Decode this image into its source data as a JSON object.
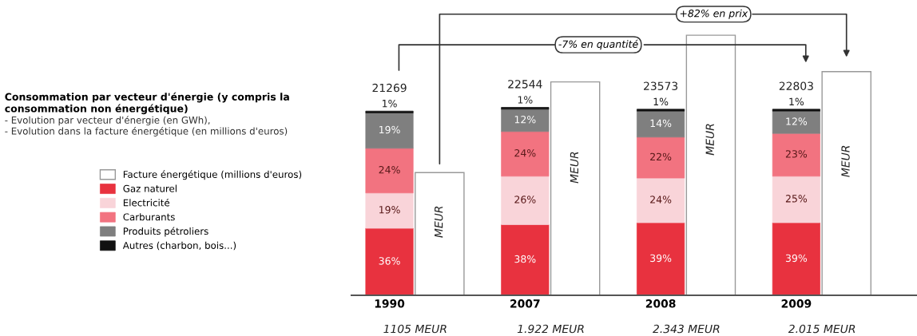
{
  "chart_data": {
    "type": "bar",
    "stacked": true,
    "title": "Consommation par vecteur d'énergie (y compris la\nconsommation non énergétique)",
    "subtitle": "- Evolution par vecteur d'énergie (en GWh),\n- Evolution dans la facture énergétique (en millions d'euros)",
    "categories": [
      "1990",
      "2007",
      "2008",
      "2009"
    ],
    "series": [
      {
        "name": "Gaz naturel",
        "color": "#e8323f",
        "values": [
          36,
          38,
          39,
          39
        ],
        "value_labels": [
          "36%",
          "38%",
          "39%",
          "39%"
        ]
      },
      {
        "name": "Electricité",
        "color": "#f9d4d9",
        "values": [
          19,
          26,
          24,
          25
        ],
        "value_labels": [
          "19%",
          "26%",
          "24%",
          "25%"
        ]
      },
      {
        "name": "Carburants",
        "color": "#f27380",
        "values": [
          24,
          24,
          22,
          23
        ],
        "value_labels": [
          "24%",
          "24%",
          "22%",
          "23%"
        ]
      },
      {
        "name": "Produits pétroliers",
        "color": "#7f7f7f",
        "values": [
          19,
          12,
          14,
          12
        ],
        "value_labels": [
          "19%",
          "12%",
          "14%",
          "12%"
        ]
      },
      {
        "name": "Autres (charbon, bois...)",
        "color": "#111111",
        "values": [
          1,
          1,
          1,
          1
        ],
        "value_labels": [
          "1%",
          "1%",
          "1%",
          "1%"
        ]
      },
      {
        "name": "Facture énergétique (millions d'euros)",
        "color": "#ffffff",
        "axis": "y2",
        "values": [
          1105,
          1922,
          2343,
          2015
        ],
        "value_labels": [
          "1105 MEUR",
          "1.922 MEUR",
          "2.343 MEUR",
          "2.015 MEUR"
        ]
      }
    ],
    "annotations": [
      "+82% en prix",
      "-7% en quantité",
      "MEUR",
      "MEUR",
      "MEUR",
      "MEUR",
      {
        "text": "21269",
        "x": "1990",
        "y": 99
      },
      {
        "text": "22544",
        "x": "2007",
        "y": 101
      },
      {
        "text": "23573",
        "x": "2008",
        "y": 100
      },
      {
        "text": "22803",
        "x": "2009",
        "y": 100
      }
    ],
    "legend": "left",
    "grid": false
  }
}
